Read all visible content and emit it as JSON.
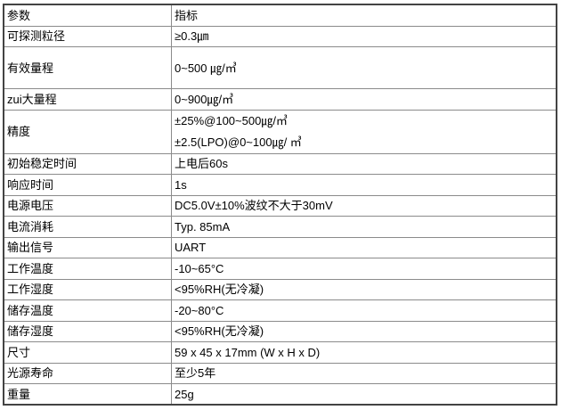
{
  "page": {
    "background_color": "#ffffff",
    "text_color": "#000000",
    "table_outer_border_color": "#434343",
    "table_inner_border_color": "#8b8b8b"
  },
  "table": {
    "columns": [
      {
        "label": "参数"
      },
      {
        "label": "指标"
      }
    ],
    "rows": [
      {
        "param": "可探测粒径",
        "value": "≥0.3㎛"
      },
      {
        "param": "有效量程",
        "value": "0~500 ㎍/㎥"
      },
      {
        "param": "zui大量程",
        "value": "0~900㎍/㎥"
      },
      {
        "param": "精度",
        "value_lines": [
          "±25%@100~500㎍/㎥",
          "±2.5(LPO)@0~100㎍/ ㎥"
        ]
      },
      {
        "param": "初始稳定时间",
        "value": "上电后60s"
      },
      {
        "param": "响应时间",
        "value": "1s"
      },
      {
        "param": "电源电压",
        "value": "DC5.0V±10%波纹不大于30mV"
      },
      {
        "param": "电流消耗",
        "value": "Typ. 85mA"
      },
      {
        "param": "输出信号",
        "value": "UART"
      },
      {
        "param": "工作温度",
        "value": "-10~65°C"
      },
      {
        "param": "工作湿度",
        "value": "<95%RH(无冷凝)"
      },
      {
        "param": "储存温度",
        "value": "-20~80°C"
      },
      {
        "param": "储存湿度",
        "value": "<95%RH(无冷凝)"
      },
      {
        "param": "尺寸",
        "value": "59 x 45 x 17mm (W x H x D)"
      },
      {
        "param": "光源寿命",
        "value": "至少5年"
      },
      {
        "param": "重量",
        "value": "25g"
      }
    ]
  }
}
